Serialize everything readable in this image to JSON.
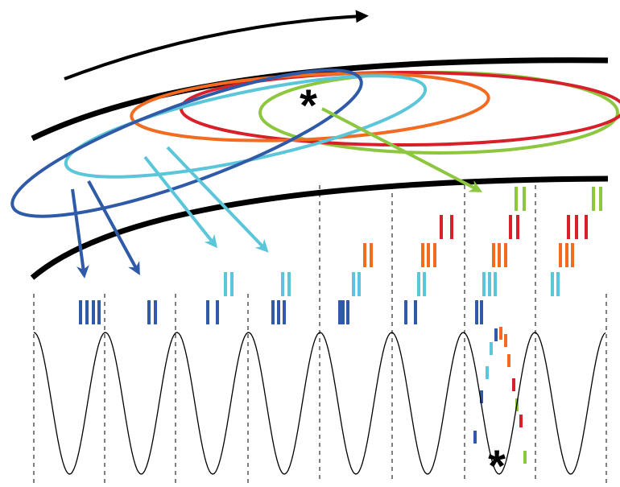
{
  "annotations": [
    "*",
    "*"
  ]
}
